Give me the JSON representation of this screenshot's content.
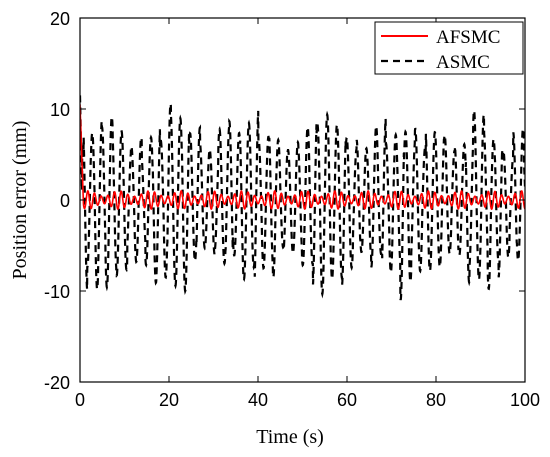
{
  "chart_data": {
    "type": "line",
    "title": "",
    "xlabel": "Time (s)",
    "ylabel": "Position error (mm)",
    "xlim": [
      0,
      100
    ],
    "ylim": [
      -20,
      20
    ],
    "xticks": [
      "0",
      "20",
      "40",
      "60",
      "80",
      "100"
    ],
    "yticks": [
      "20",
      "10",
      "0",
      "-10",
      "-20"
    ],
    "grid": false,
    "legend_position": "top-right",
    "series": [
      {
        "name": "AFSMC",
        "color": "#ff0000",
        "style": "solid",
        "x": [
          0,
          0.2,
          0.4,
          0.6,
          0.8,
          1.0,
          1.5,
          2.0,
          3.0,
          4.0,
          5.0,
          10.0,
          20.0,
          30.0,
          40.0,
          50.0,
          60.0,
          70.0,
          80.0,
          90.0,
          100.0
        ],
        "y": [
          10.5,
          8.0,
          4.0,
          1.0,
          -0.5,
          -1.2,
          0.8,
          -0.8,
          0.9,
          -0.9,
          1.0,
          -1.0,
          1.0,
          -1.0,
          1.0,
          -1.0,
          1.0,
          -1.0,
          1.0,
          -1.0,
          0.5
        ],
        "oscillation_period_s": 1.5,
        "steady_amplitude": 1.0
      },
      {
        "name": "ASMC",
        "color": "#000000",
        "style": "dashed",
        "x": [
          0,
          0.5,
          1.0,
          5.0,
          10.0,
          20.0,
          30.0,
          40.0,
          50.0,
          60.0,
          70.0,
          80.0,
          90.0,
          100.0
        ],
        "y": [
          11.5,
          0.0,
          -8.0,
          10.0,
          11.0,
          -9.5,
          11.0,
          -9.0,
          10.5,
          -9.0,
          11.0,
          -9.0,
          10.5,
          -8.0
        ],
        "oscillation_period_s": 2.2,
        "peak_amplitude": 11.0
      }
    ]
  }
}
